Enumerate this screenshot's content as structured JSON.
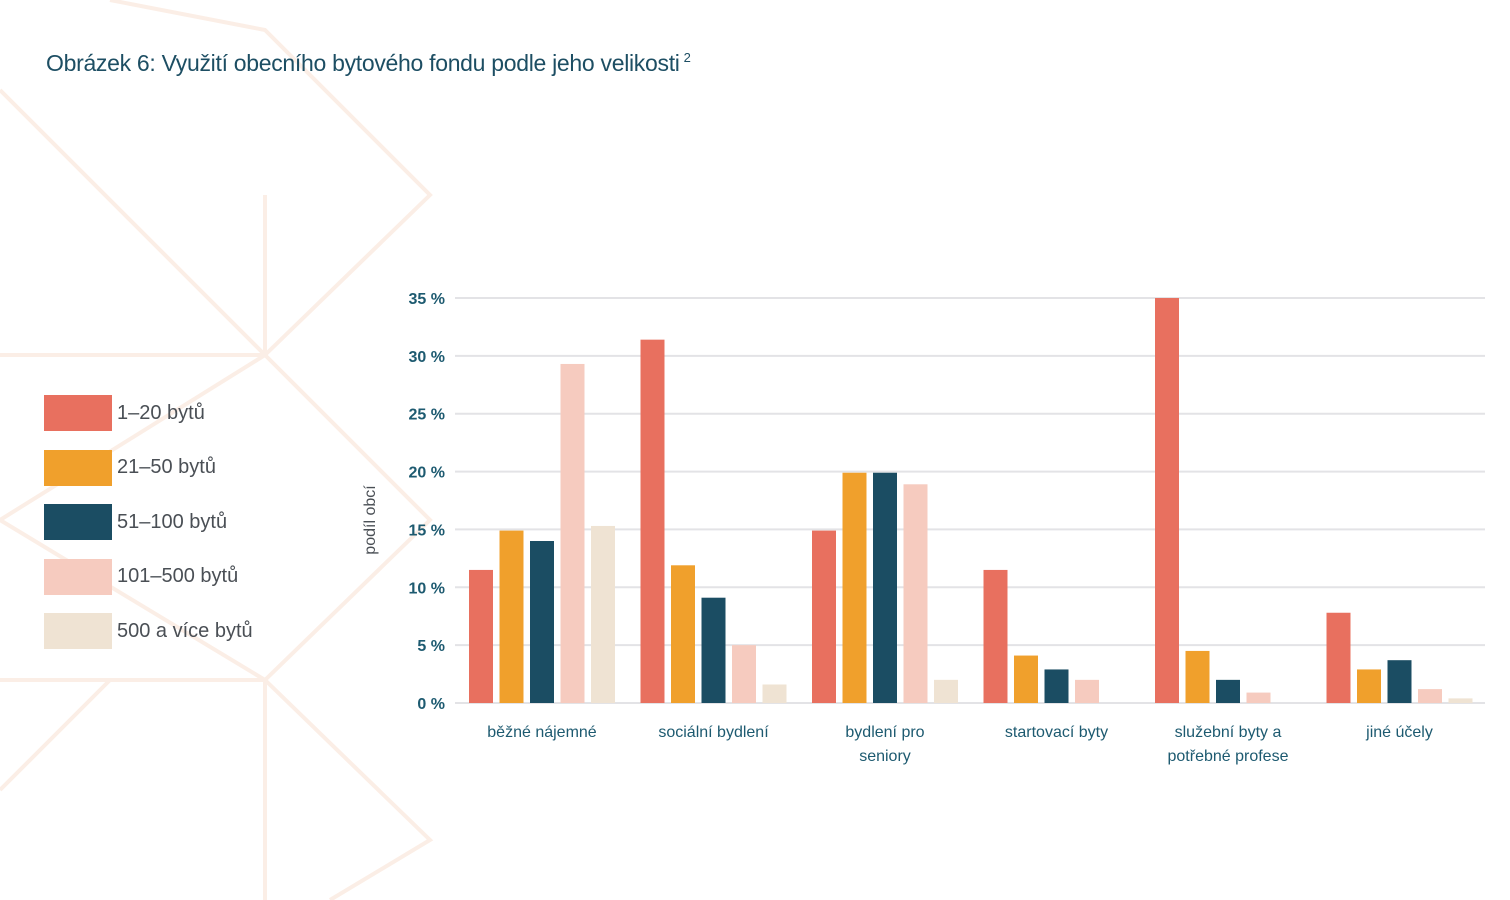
{
  "title": "Obrázek 6: Využití obecního bytového fondu podle jeho velikosti",
  "title_footnote": "2",
  "chart_data": {
    "type": "bar",
    "title": "Obrázek 6: Využití obecního bytového fondu podle jeho velikosti",
    "xlabel": "",
    "ylabel": "podíl obcí",
    "ylim": [
      0,
      35
    ],
    "yticks": [
      0,
      5,
      10,
      15,
      20,
      25,
      30,
      35
    ],
    "ytick_labels": [
      "0 %",
      "5 %",
      "10 %",
      "15 %",
      "20 %",
      "25 %",
      "30 %",
      "35 %"
    ],
    "grid": true,
    "legend_position": "left",
    "categories": [
      [
        "běžné nájemné"
      ],
      [
        "sociální bydlení"
      ],
      [
        "bydlení pro",
        "seniory"
      ],
      [
        "startovací byty"
      ],
      [
        "služební byty a",
        "potřebné profese"
      ],
      [
        "jiné účely"
      ]
    ],
    "series": [
      {
        "name": "1–20 bytů",
        "color": "#e8705f",
        "values": [
          11.5,
          31.4,
          14.9,
          11.5,
          35.0,
          7.8
        ]
      },
      {
        "name": "21–50 bytů",
        "color": "#f0a02c",
        "values": [
          14.9,
          11.9,
          19.9,
          4.1,
          4.5,
          2.9
        ]
      },
      {
        "name": "51–100 bytů",
        "color": "#1b4d63",
        "values": [
          14.0,
          9.1,
          19.9,
          2.9,
          2.0,
          3.7
        ]
      },
      {
        "name": "101–500 bytů",
        "color": "#f6cbbf",
        "values": [
          29.3,
          5.0,
          18.9,
          2.0,
          0.9,
          1.2
        ]
      },
      {
        "name": "500 a více bytů",
        "color": "#efe3d3",
        "values": [
          15.3,
          1.6,
          2.0,
          0.0,
          0.0,
          0.4
        ]
      }
    ]
  }
}
